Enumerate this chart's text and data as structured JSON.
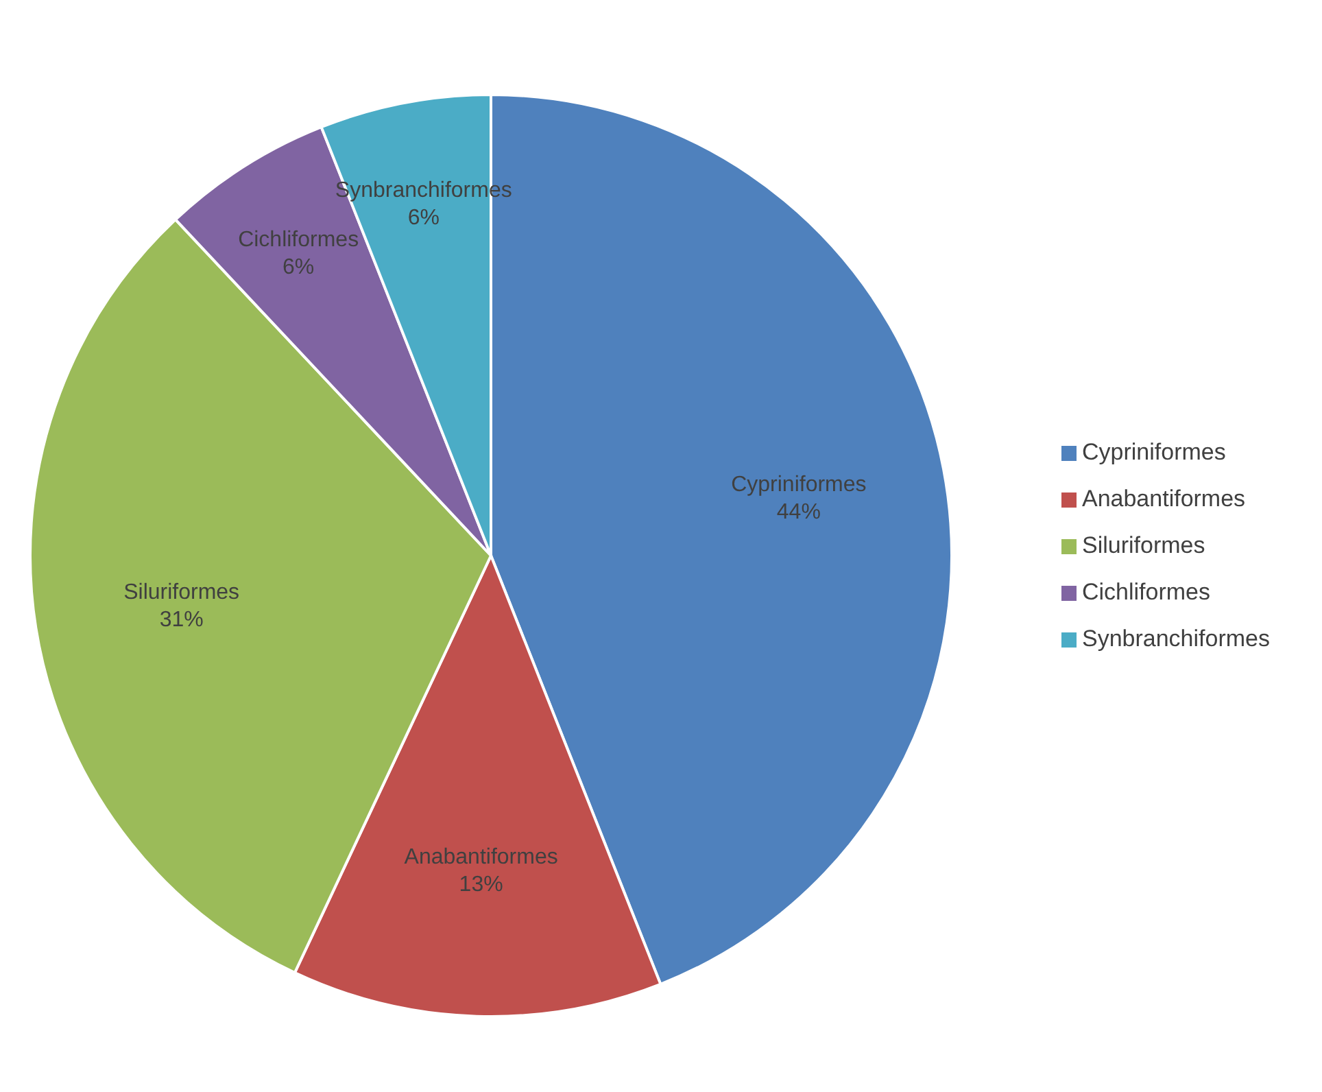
{
  "chart_data": {
    "type": "pie",
    "categories": [
      "Cypriniformes",
      "Anabantiformes",
      "Siluriformes",
      "Cichliformes",
      "Synbranchiformes"
    ],
    "values": [
      44,
      13,
      31,
      6,
      6
    ],
    "value_labels": [
      "44%",
      "13%",
      "31%",
      "6%",
      "6%"
    ],
    "colors": [
      "#4f81bd",
      "#c0504d",
      "#9bbb59",
      "#8064a2",
      "#4bacc6"
    ],
    "legend": "right"
  }
}
